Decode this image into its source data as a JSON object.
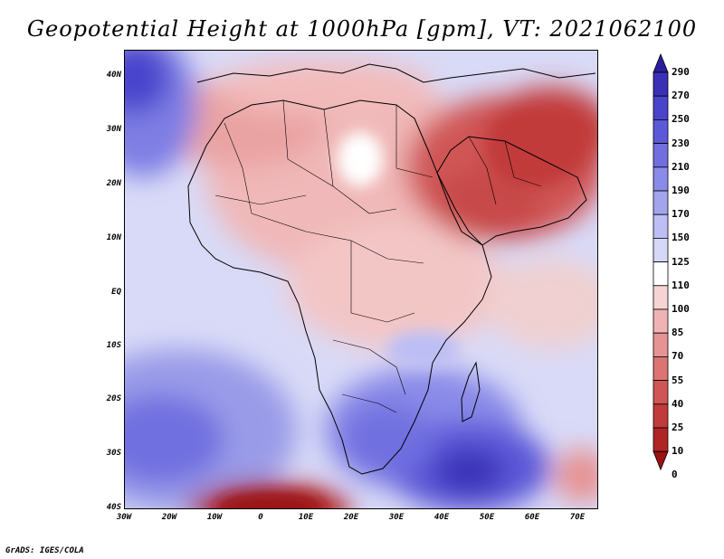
{
  "title": "Geopotential Height at 1000hPa [gpm], VT: 2021062100",
  "footer": "GrADS: IGES/COLA",
  "map": {
    "lat_labels": [
      "40N",
      "30N",
      "20N",
      "10N",
      "EQ",
      "10S",
      "20S",
      "30S",
      "40S"
    ],
    "lon_labels": [
      "30W",
      "20W",
      "10W",
      "0",
      "10E",
      "20E",
      "30E",
      "40E",
      "50E",
      "60E",
      "70E"
    ]
  },
  "colorbar": {
    "levels": [
      "290",
      "270",
      "250",
      "230",
      "210",
      "190",
      "170",
      "150",
      "125",
      "110",
      "100",
      "85",
      "70",
      "55",
      "40",
      "25",
      "10",
      "0"
    ],
    "colors": [
      "#2a1e9e",
      "#3a30b8",
      "#4a44cc",
      "#5c59d8",
      "#716fe0",
      "#8a8ae8",
      "#a3a4ee",
      "#bcbef4",
      "#d6d8f8",
      "#ffffff",
      "#f6d4d4",
      "#f0b3b3",
      "#e69393",
      "#dc7474",
      "#d05656",
      "#c23b3b",
      "#b02424",
      "#9a1212"
    ]
  }
}
